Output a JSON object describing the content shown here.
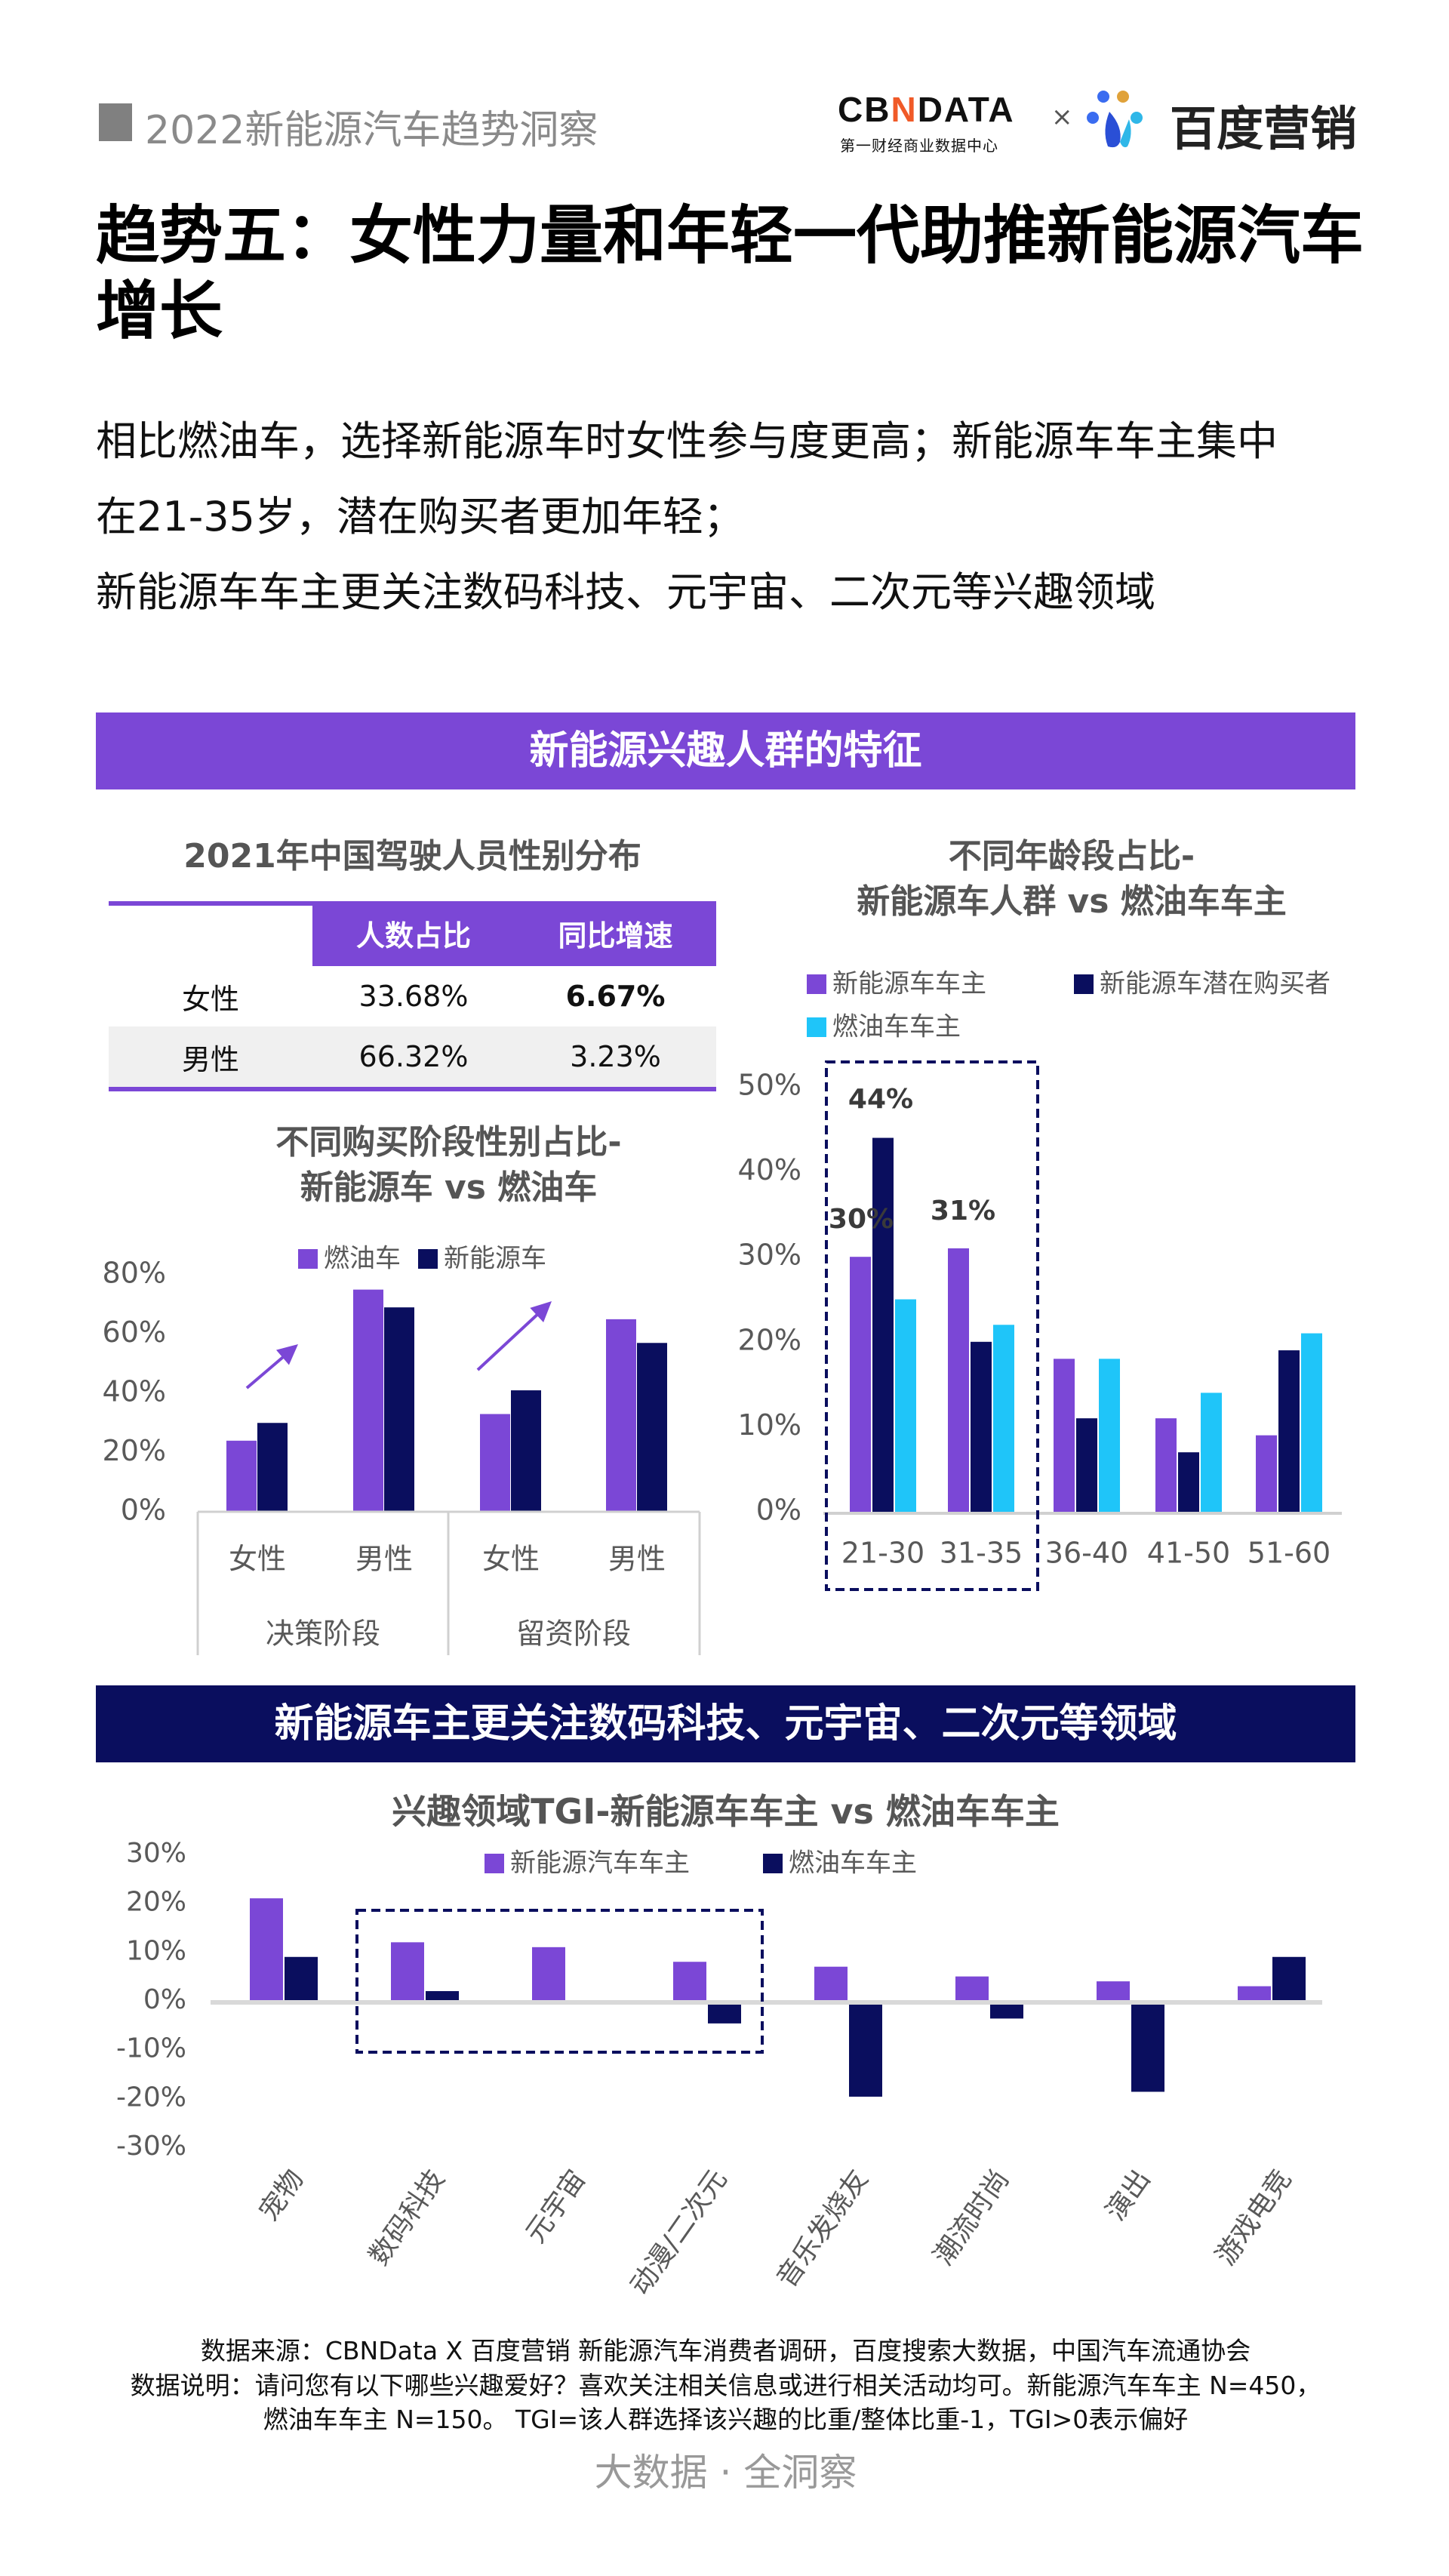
{
  "header": {
    "title": "2022新能源汽车趋势洞察",
    "logo_cbndata": "CBNDATA",
    "logo_cbndata_sub": "第一财经商业数据中心",
    "times": "×",
    "logo_baidu": "百度营销"
  },
  "title": "趋势五：女性力量和年轻一代助推新能源汽车增长",
  "intro": [
    "相比燃油车，选择新能源车时女性参与度更高；新能源车车主集中",
    "在21-35岁，潜在购买者更加年轻；",
    "新能源车车主更关注数码科技、元宇宙、二次元等兴趣领域"
  ],
  "banner1": "新能源兴趣人群的特征",
  "banner2": "新能源车主更关注数码科技、元宇宙、二次元等领域",
  "colors": {
    "purple": "#7b47d6",
    "navy": "#0a0e5e",
    "cyan": "#1fc5f9"
  },
  "table": {
    "title": "2021年中国驾驶人员性别分布",
    "headers": [
      "",
      "人数占比",
      "同比增速"
    ],
    "rows": [
      {
        "label": "女性",
        "share": "33.68%",
        "growth": "6.67%"
      },
      {
        "label": "男性",
        "share": "66.32%",
        "growth": "3.23%"
      }
    ]
  },
  "chart_data": [
    {
      "type": "bar",
      "title": "不同购买阶段性别占比-新能源车 vs 燃油车",
      "title_lines": [
        "不同购买阶段性别占比-",
        "新能源车 vs 燃油车"
      ],
      "categories": [
        "女性",
        "男性",
        "女性",
        "男性"
      ],
      "groups": [
        {
          "label": "决策阶段",
          "span": 2
        },
        {
          "label": "留资阶段",
          "span": 2
        }
      ],
      "series": [
        {
          "name": "燃油车",
          "color": "#7b47d6",
          "values": [
            24,
            75,
            33,
            65
          ]
        },
        {
          "name": "新能源车",
          "color": "#0a0e5e",
          "values": [
            30,
            69,
            41,
            57
          ]
        }
      ],
      "yticks": [
        "0%",
        "20%",
        "40%",
        "60%",
        "80%"
      ],
      "ylim": [
        0,
        80
      ],
      "legend": "top",
      "annotations": "upward arrows over 女性 groups"
    },
    {
      "type": "bar",
      "title": "不同年龄段占比-新能源车人群 vs 燃油车车主",
      "title_lines": [
        "不同年龄段占比-",
        "新能源车人群 vs 燃油车车主"
      ],
      "categories": [
        "21-30",
        "31-35",
        "36-40",
        "41-50",
        "51-60"
      ],
      "series": [
        {
          "name": "新能源车车主",
          "color": "#7b47d6",
          "values": [
            30,
            31,
            18,
            11,
            9
          ]
        },
        {
          "name": "新能源车潜在购买者",
          "color": "#0a0e5e",
          "values": [
            44,
            20,
            11,
            7,
            19
          ]
        },
        {
          "name": "燃油车车主",
          "color": "#1fc5f9",
          "values": [
            25,
            22,
            18,
            14,
            21
          ]
        }
      ],
      "data_labels": [
        {
          "category": "21-30",
          "series": "新能源车潜在购买者",
          "text": "44%"
        },
        {
          "category": "21-30",
          "series": "新能源车车主",
          "text": "30%"
        },
        {
          "category": "31-35",
          "series": "新能源车车主",
          "text": "31%"
        }
      ],
      "yticks": [
        "0%",
        "10%",
        "20%",
        "30%",
        "40%",
        "50%"
      ],
      "ylim": [
        0,
        50
      ],
      "legend": "top",
      "highlight": [
        "21-30",
        "31-35"
      ]
    },
    {
      "type": "bar",
      "title": "兴趣领域TGI-新能源车车主 vs 燃油车车主",
      "categories": [
        "宠物",
        "数码科技",
        "元宇宙",
        "动漫/二次元",
        "音乐发烧友",
        "潮流时尚",
        "演出",
        "游戏电竞"
      ],
      "series": [
        {
          "name": "新能源汽车车主",
          "color": "#7b47d6",
          "values": [
            21,
            12,
            11,
            8,
            7,
            5,
            4,
            3
          ]
        },
        {
          "name": "燃油车车主",
          "color": "#0a0e5e",
          "values": [
            9,
            2,
            0,
            -4,
            -19,
            -3,
            -18,
            9
          ]
        }
      ],
      "yticks": [
        "-30%",
        "-20%",
        "-10%",
        "0%",
        "10%",
        "20%",
        "30%"
      ],
      "ylim": [
        -30,
        30
      ],
      "legend": "top",
      "highlight": [
        "数码科技",
        "元宇宙",
        "动漫/二次元"
      ]
    }
  ],
  "footer": {
    "source": "数据来源：CBNData X 百度营销 新能源汽车消费者调研，百度搜索大数据，中国汽车流通协会",
    "note1": "数据说明：请问您有以下哪些兴趣爱好？喜欢关注相关信息或进行相关活动均可。新能源汽车车主 N=450，",
    "note2": "燃油车车主 N=150。 TGI=该人群选择该兴趣的比重/整体比重-1，TGI>0表示偏好",
    "slogan": "大数据 · 全洞察"
  }
}
